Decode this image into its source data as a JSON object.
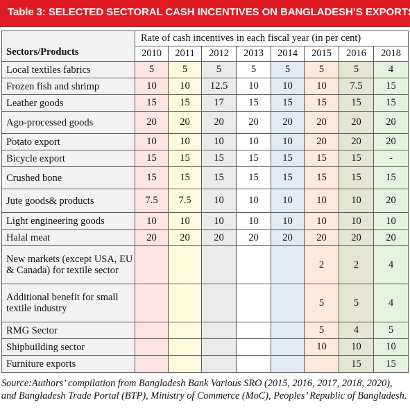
{
  "title": "Table 3: SELECTED SECTORAL CASH INCENTIVES ON BANGLADESH’S EXPORTS",
  "table": {
    "sector_header": "Sectors/Products",
    "rate_header": "Rate of cash incentives in each fiscal year (in per cent)",
    "years": [
      "2010",
      "2011",
      "2012",
      "2013",
      "2014",
      "2015",
      "2016",
      "2018"
    ],
    "rows": [
      {
        "sector": "Local textiles fabrics",
        "values": [
          "5",
          "5",
          "5",
          "5",
          "5",
          "5",
          "5",
          "4"
        ]
      },
      {
        "sector": "Frozen fish and shrimp",
        "values": [
          "10",
          "10",
          "12.5",
          "10",
          "10",
          "10",
          "7.5",
          "15"
        ]
      },
      {
        "sector": "Leather goods",
        "values": [
          "15",
          "15",
          "17",
          "15",
          "15",
          "15",
          "15",
          "15"
        ]
      },
      {
        "sector": "Ago-processed goods",
        "values": [
          "20",
          "20",
          "20",
          "20",
          "20",
          "20",
          "20",
          "20"
        ]
      },
      {
        "sector": "Potato export",
        "values": [
          "10",
          "10",
          "10",
          "10",
          "10",
          "20",
          "20",
          "20"
        ]
      },
      {
        "sector": "Bicycle export",
        "values": [
          "15",
          "15",
          "15",
          "15",
          "15",
          "15",
          "15",
          "-"
        ]
      },
      {
        "sector": "Crushed bone",
        "values": [
          "15",
          "15",
          "15",
          "15",
          "15",
          "15",
          "15",
          "15"
        ]
      },
      {
        "sector": "Jute goods& products",
        "values": [
          "7.5",
          "7.5",
          "10",
          "10",
          "10",
          "10",
          "10",
          "20"
        ]
      },
      {
        "sector": "Light engineering goods",
        "values": [
          "10",
          "10",
          "10",
          "10",
          "10",
          "10",
          "10",
          "10"
        ]
      },
      {
        "sector": "Halal meat",
        "values": [
          "20",
          "20",
          "20",
          "20",
          "20",
          "20",
          "20",
          "20"
        ]
      },
      {
        "sector": "New markets (except USA, EU & Canada) for textile sector",
        "values": [
          "",
          "",
          "",
          "",
          "",
          "2",
          "2",
          "4"
        ]
      },
      {
        "sector": "Additional benefit for small textile industry",
        "values": [
          "",
          "",
          "",
          "",
          "",
          "5",
          "5",
          "4"
        ]
      },
      {
        "sector": "RMG Sector",
        "values": [
          "",
          "",
          "",
          "",
          "",
          "5",
          "4",
          "5"
        ]
      },
      {
        "sector": "Shipbuilding sector",
        "values": [
          "",
          "",
          "",
          "",
          "",
          "10",
          "10",
          "10"
        ]
      },
      {
        "sector": "Furniture exports",
        "values": [
          "",
          "",
          "",
          "",
          "",
          "",
          "15",
          "15"
        ]
      }
    ]
  },
  "source": "Source:Authors’ compilation from Bangladesh Bank Various SRO (2015, 2016, 2017, 2018, 2020), and Bangladesh Trade Portal (BTP), Ministry of Commerce (MoC), Peoples’ Republic of Bangladesh."
}
